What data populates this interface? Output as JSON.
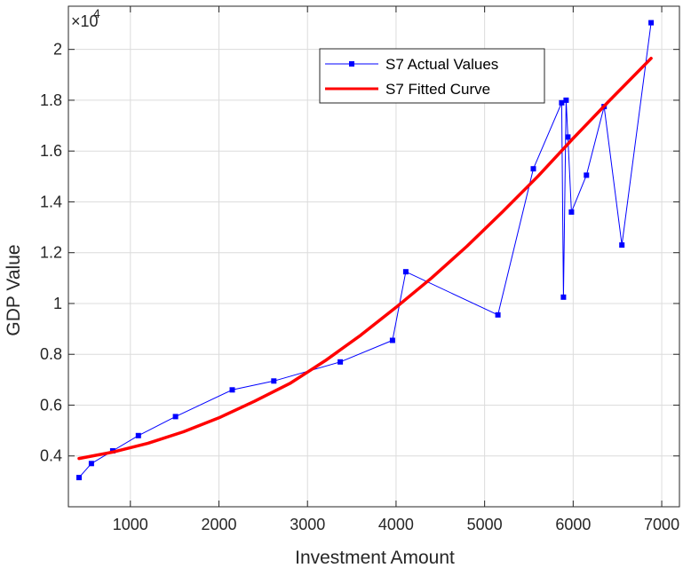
{
  "chart_data": {
    "type": "line",
    "xlabel": "Investment Amount",
    "ylabel": "GDP Value",
    "y_exponent_base": "×10",
    "y_exponent_power": "4",
    "xlim": [
      300,
      7200
    ],
    "ylim": [
      2000,
      21700
    ],
    "x_ticks": [
      1000,
      2000,
      3000,
      4000,
      5000,
      6000,
      7000
    ],
    "x_tick_labels": [
      "1000",
      "2000",
      "3000",
      "4000",
      "5000",
      "6000",
      "7000"
    ],
    "y_ticks": [
      4000,
      6000,
      8000,
      10000,
      12000,
      14000,
      16000,
      18000,
      20000
    ],
    "y_tick_labels": [
      "0.4",
      "0.6",
      "0.8",
      "1",
      "1.2",
      "1.4",
      "1.6",
      "1.8",
      "2"
    ],
    "grid": true,
    "legend_position": "top-right",
    "series": [
      {
        "name": "S7 Actual Values",
        "style": "line-with-square-markers",
        "color": "#0000ff",
        "x": [
          420,
          560,
          800,
          1090,
          1510,
          2150,
          2620,
          3370,
          3960,
          4110,
          5150,
          5550,
          5870,
          5890,
          5920,
          5940,
          5980,
          6150,
          6350,
          6550,
          6880
        ],
        "y": [
          3150,
          3700,
          4200,
          4800,
          5550,
          6600,
          6950,
          7700,
          8550,
          11250,
          9550,
          15300,
          17900,
          10250,
          18000,
          16550,
          13600,
          15050,
          17750,
          12300,
          21050
        ]
      },
      {
        "name": "S7 Fitted Curve",
        "style": "thick-line",
        "color": "#ff0000",
        "x": [
          420,
          800,
          1200,
          1600,
          2000,
          2400,
          2800,
          3000,
          3200,
          3600,
          4000,
          4400,
          4800,
          5200,
          5600,
          6000,
          6400,
          6880
        ],
        "y": [
          3900,
          4150,
          4500,
          4950,
          5500,
          6150,
          6850,
          7300,
          7750,
          8750,
          9850,
          11000,
          12250,
          13600,
          15000,
          16500,
          17950,
          19650
        ]
      }
    ]
  }
}
